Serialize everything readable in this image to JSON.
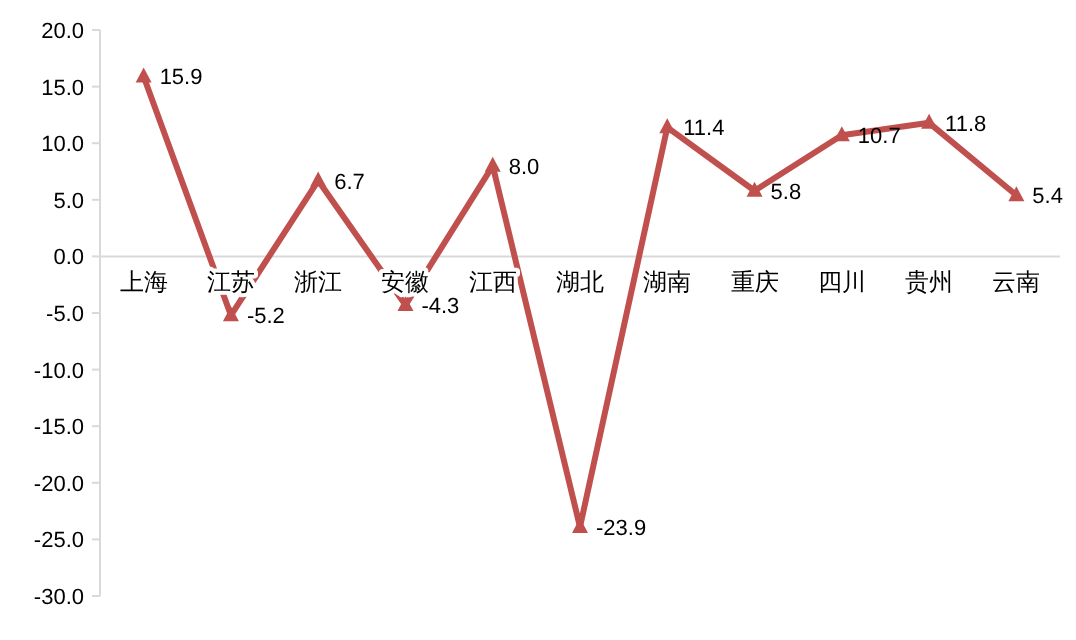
{
  "chart_data": {
    "type": "line",
    "categories": [
      "上海",
      "江苏",
      "浙江",
      "安徽",
      "江西",
      "湖北",
      "湖南",
      "重庆",
      "四川",
      "贵州",
      "云南"
    ],
    "series": [
      {
        "color": "#c0504d",
        "values": [
          15.9,
          -5.2,
          6.7,
          -4.3,
          8.0,
          -23.9,
          11.4,
          5.8,
          10.7,
          11.8,
          5.4
        ],
        "value_labels": [
          "15.9",
          "-5.2",
          "6.7",
          "-4.3",
          "8.0",
          "-23.9",
          "11.4",
          "5.8",
          "10.7",
          "11.8",
          "5.4"
        ]
      }
    ],
    "ylim": [
      -30,
      20
    ],
    "yticks": [
      {
        "value": 20,
        "label": "20.0"
      },
      {
        "value": 15,
        "label": "15.0"
      },
      {
        "value": 10,
        "label": "10.0"
      },
      {
        "value": 5,
        "label": "5.0"
      },
      {
        "value": 0,
        "label": "0.0"
      },
      {
        "value": -5,
        "label": "-5.0"
      },
      {
        "value": -10,
        "label": "-10.0"
      },
      {
        "value": -15,
        "label": "-15.0"
      },
      {
        "value": -20,
        "label": "-20.0"
      },
      {
        "value": -25,
        "label": "-25.0"
      },
      {
        "value": -30,
        "label": "-30.0"
      }
    ],
    "grid": false,
    "marker": "triangle",
    "line_style": "solid"
  }
}
